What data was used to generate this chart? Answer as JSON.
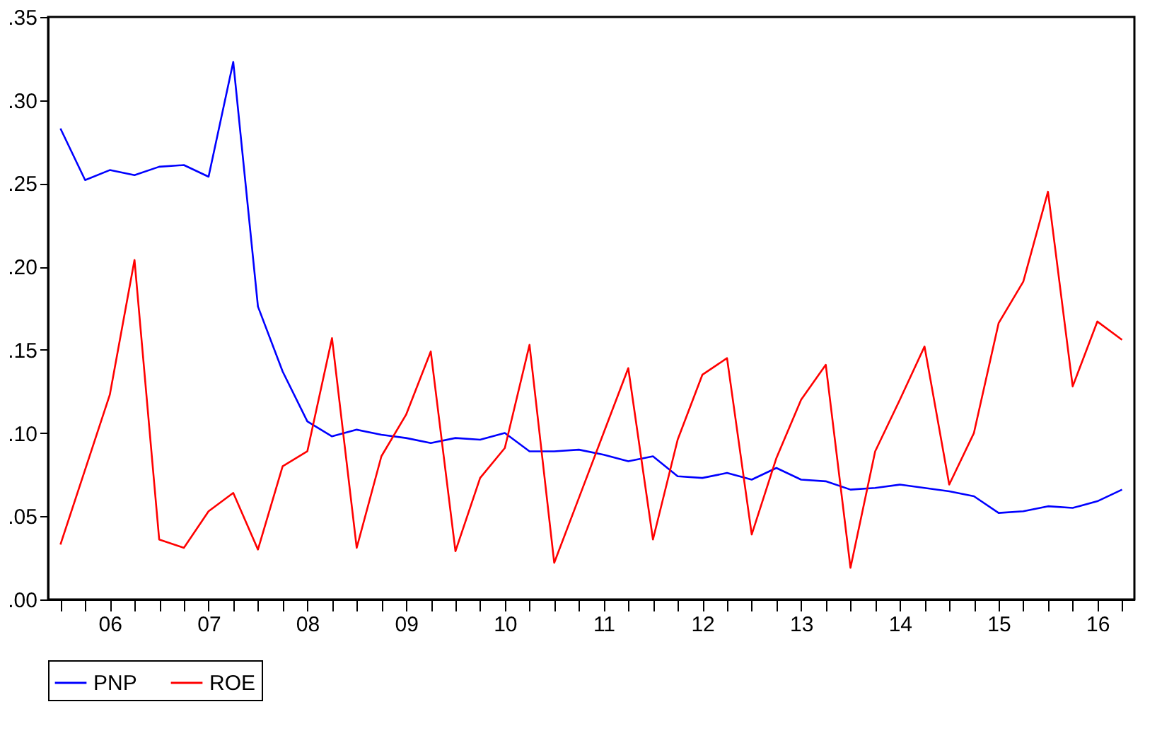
{
  "chart_data": {
    "type": "line",
    "categories": [
      null,
      null,
      "06",
      null,
      null,
      null,
      "07",
      null,
      null,
      null,
      "08",
      null,
      null,
      null,
      "09",
      null,
      null,
      null,
      "10",
      null,
      null,
      null,
      "11",
      null,
      null,
      null,
      "12",
      null,
      null,
      null,
      "13",
      null,
      null,
      null,
      "14",
      null,
      null,
      null,
      "15",
      null,
      null,
      null,
      "16",
      null
    ],
    "series": [
      {
        "name": "PNP",
        "color": "#0000ff",
        "values": [
          0.283,
          0.252,
          0.258,
          0.255,
          0.26,
          0.261,
          0.254,
          0.323,
          0.176,
          0.137,
          0.107,
          0.098,
          0.102,
          0.099,
          0.097,
          0.094,
          0.097,
          0.096,
          0.1,
          0.089,
          0.089,
          0.09,
          0.087,
          0.083,
          0.086,
          0.074,
          0.073,
          0.076,
          0.072,
          0.079,
          0.072,
          0.071,
          0.066,
          0.067,
          0.069,
          0.067,
          0.065,
          0.062,
          0.052,
          0.053,
          0.056,
          0.055,
          0.059,
          0.066
        ]
      },
      {
        "name": "ROE",
        "color": "#ff0000",
        "values": [
          0.033,
          0.078,
          0.123,
          0.204,
          0.036,
          0.031,
          0.053,
          0.064,
          0.03,
          0.08,
          0.089,
          0.157,
          0.031,
          0.086,
          0.111,
          0.149,
          0.029,
          0.073,
          0.091,
          0.153,
          0.022,
          0.061,
          0.1,
          0.139,
          0.036,
          0.096,
          0.135,
          0.145,
          0.039,
          0.085,
          0.12,
          0.141,
          0.019,
          0.089,
          0.12,
          0.152,
          0.069,
          0.1,
          0.166,
          0.191,
          0.245,
          0.128,
          0.167,
          0.156
        ]
      }
    ],
    "ylim": [
      0,
      0.35
    ],
    "yticks": [
      {
        "value": 0,
        "label": ".00"
      },
      {
        "value": 0.05,
        "label": ".05"
      },
      {
        "value": 0.1,
        "label": ".10"
      },
      {
        "value": 0.15,
        "label": ".15"
      },
      {
        "value": 0.2,
        "label": ".20"
      },
      {
        "value": 0.25,
        "label": ".25"
      },
      {
        "value": 0.3,
        "label": ".30"
      },
      {
        "value": 0.35,
        "label": ".35"
      }
    ],
    "grid": false,
    "legend": "bottom"
  }
}
